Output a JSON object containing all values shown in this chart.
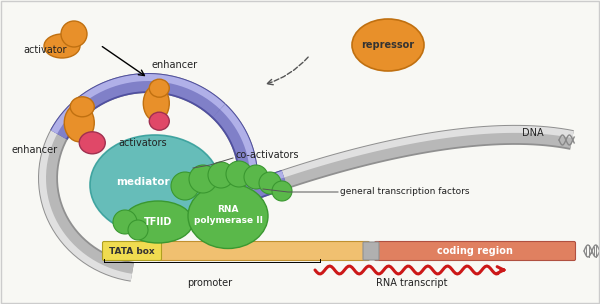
{
  "bg_color": "#f8f8f4",
  "dna_tube_color": "#b8b8b8",
  "dna_tube_highlight": "#e0e0e0",
  "dna_tube_shadow": "#909090",
  "enhancer_color": "#8080c8",
  "enhancer_highlight": "#a8a8e0",
  "mediator_color": "#5ab8b4",
  "tfiid_color": "#5ab84a",
  "rna_pol_color": "#5ab84a",
  "gtf_color": "#5ab84a",
  "activator_color": "#e8902a",
  "repressor_color": "#e8902a",
  "coactivator_color": "#e04868",
  "tata_box_color": "#f0dc50",
  "promoter_color": "#f0c070",
  "coding_region_color": "#e08060",
  "rna_transcript_color": "#cc1818",
  "border_color": "#cccccc",
  "labels": {
    "activator": "activator",
    "enhancer_top": "enhancer",
    "enhancer_left": "enhancer",
    "activators": "activators",
    "coactivators": "co-activators",
    "mediator": "mediator",
    "tfiid": "TFIID",
    "rna_pol": "RNA\npolymerase II",
    "gtf": "general transcription factors",
    "dna": "DNA",
    "tata_box": "TATA box",
    "promoter": "promoter",
    "coding_region": "coding region",
    "rna_transcript": "RNA transcript",
    "repressor": "repressor"
  }
}
